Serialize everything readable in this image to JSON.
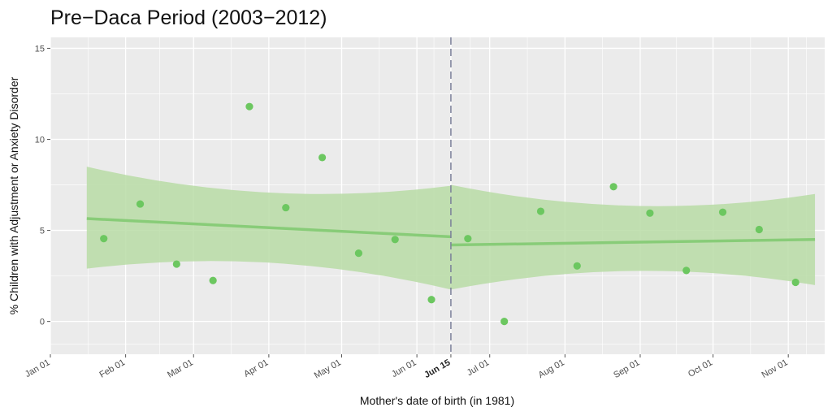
{
  "chart_data": {
    "type": "scatter",
    "title": "Pre−Daca Period  (2003−2012)",
    "xlabel": "Mother's date of birth (in 1981)",
    "ylabel": "% Children with Adjustment or Anxiety Disorder",
    "x_ticks": [
      "Jan 01",
      "Feb 01",
      "Mar 01",
      "Apr 01",
      "May 01",
      "Jun 01",
      "Jun 15",
      "Jul 01",
      "Aug 01",
      "Sep 01",
      "Oct 01",
      "Nov 01"
    ],
    "x_tick_days": [
      0,
      31,
      59,
      90,
      120,
      151,
      165,
      181,
      212,
      243,
      273,
      304
    ],
    "emphasized_tick": "Jun 15",
    "xlim": [
      0,
      319
    ],
    "y_ticks": [
      "0",
      "5",
      "10",
      "15"
    ],
    "ylim": [
      -1.8,
      15.6
    ],
    "cutoff_x": 165,
    "grid": true,
    "colors": {
      "points": "#6cc760",
      "fit_line": "#88cc78",
      "ribbon": "#b8dca6",
      "panel": "#ebebeb",
      "grid": "#ffffff",
      "cutoff": "#7a7f99"
    },
    "series": [
      {
        "type": "scatter",
        "x": [
          22,
          37,
          52,
          67,
          82,
          97,
          112,
          127,
          142,
          157,
          172,
          187,
          202,
          217,
          232,
          247,
          262,
          277,
          292,
          307
        ],
        "y": [
          4.55,
          6.45,
          3.15,
          2.25,
          11.8,
          6.25,
          9.0,
          3.75,
          4.5,
          1.2,
          4.55,
          0.0,
          6.05,
          3.05,
          7.4,
          5.95,
          2.8,
          6.0,
          5.05,
          2.15
        ]
      },
      {
        "type": "line",
        "x": [
          15,
          165
        ],
        "y": [
          5.65,
          4.65
        ],
        "ribbon_upper": [
          8.5,
          7.45
        ],
        "ribbon_lower": [
          2.9,
          1.75
        ]
      },
      {
        "type": "line",
        "x": [
          165,
          315
        ],
        "y": [
          4.2,
          4.5
        ],
        "ribbon_upper": [
          7.5,
          7.0
        ],
        "ribbon_lower": [
          1.75,
          2.0
        ]
      }
    ]
  }
}
